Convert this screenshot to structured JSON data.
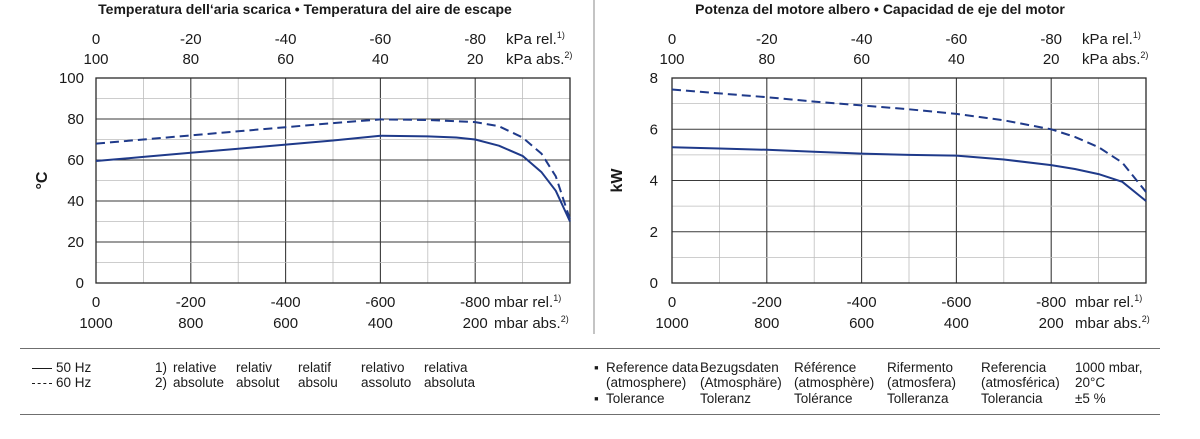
{
  "chart_data": [
    {
      "type": "line",
      "title": "Temperatura dell‘aria scarica  •  Temperatura del aire de escape",
      "ylabel": "°C",
      "ylim": [
        0,
        100
      ],
      "yticks": [
        "0",
        "20",
        "40",
        "60",
        "80",
        "100"
      ],
      "xlim": [
        0,
        -1000
      ],
      "x_bottom": {
        "ticks": [
          {
            "rel": "0",
            "abs": "1000"
          },
          {
            "rel": "-200",
            "abs": "800"
          },
          {
            "rel": "-400",
            "abs": "600"
          },
          {
            "rel": "-600",
            "abs": "400"
          },
          {
            "rel": "-800",
            "abs": "200"
          }
        ],
        "unit_rel": "mbar rel.",
        "unit_abs": "mbar abs.",
        "sup_rel": "1)",
        "sup_abs": "2)"
      },
      "x_top": {
        "ticks": [
          {
            "rel": "0",
            "abs": "100"
          },
          {
            "rel": "-20",
            "abs": "80"
          },
          {
            "rel": "-40",
            "abs": "60"
          },
          {
            "rel": "-60",
            "abs": "40"
          },
          {
            "rel": "-80",
            "abs": "20"
          }
        ],
        "unit_rel": "kPa rel.",
        "unit_abs": "kPa abs.",
        "sup_rel": "1)",
        "sup_abs": "2)"
      },
      "grid": true,
      "series": [
        {
          "name": "50 Hz",
          "style": "solid",
          "color": "#1f3a8a",
          "points": [
            [
              0,
              59.5
            ],
            [
              -100,
              61.5
            ],
            [
              -200,
              63.5
            ],
            [
              -300,
              65.5
            ],
            [
              -400,
              67.5
            ],
            [
              -500,
              69.5
            ],
            [
              -600,
              71.8
            ],
            [
              -700,
              71.5
            ],
            [
              -760,
              71
            ],
            [
              -800,
              70
            ],
            [
              -850,
              67
            ],
            [
              -900,
              62
            ],
            [
              -940,
              54
            ],
            [
              -970,
              45
            ],
            [
              -1000,
              30
            ]
          ]
        },
        {
          "name": "60 Hz",
          "style": "dashed",
          "color": "#1f3a8a",
          "points": [
            [
              0,
              68
            ],
            [
              -100,
              70
            ],
            [
              -200,
              72
            ],
            [
              -300,
              74
            ],
            [
              -400,
              76
            ],
            [
              -500,
              78
            ],
            [
              -600,
              79.8
            ],
            [
              -700,
              79.5
            ],
            [
              -800,
              78.5
            ],
            [
              -850,
              76.5
            ],
            [
              -900,
              71
            ],
            [
              -940,
              63
            ],
            [
              -970,
              52
            ],
            [
              -1000,
              31
            ]
          ]
        }
      ]
    },
    {
      "type": "line",
      "title": "Potenza del motore albero  •  Capacidad de eje del motor",
      "ylabel": "kW",
      "ylim": [
        0,
        8
      ],
      "yticks": [
        "0",
        "2",
        "4",
        "6",
        "8"
      ],
      "xlim": [
        0,
        -1000
      ],
      "x_bottom": {
        "ticks": [
          {
            "rel": "0",
            "abs": "1000"
          },
          {
            "rel": "-200",
            "abs": "800"
          },
          {
            "rel": "-400",
            "abs": "600"
          },
          {
            "rel": "-600",
            "abs": "400"
          },
          {
            "rel": "-800",
            "abs": "200"
          }
        ],
        "unit_rel": "mbar rel.",
        "unit_abs": "mbar abs.",
        "sup_rel": "1)",
        "sup_abs": "2)"
      },
      "x_top": {
        "ticks": [
          {
            "rel": "0",
            "abs": "100"
          },
          {
            "rel": "-20",
            "abs": "80"
          },
          {
            "rel": "-40",
            "abs": "60"
          },
          {
            "rel": "-60",
            "abs": "40"
          },
          {
            "rel": "-80",
            "abs": "20"
          }
        ],
        "unit_rel": "kPa rel.",
        "unit_abs": "kPa abs.",
        "sup_rel": "1)",
        "sup_abs": "2)"
      },
      "grid": true,
      "series": [
        {
          "name": "50 Hz",
          "style": "solid",
          "color": "#1f3a8a",
          "points": [
            [
              0,
              5.3
            ],
            [
              -100,
              5.25
            ],
            [
              -200,
              5.2
            ],
            [
              -300,
              5.12
            ],
            [
              -400,
              5.05
            ],
            [
              -500,
              5.0
            ],
            [
              -600,
              4.97
            ],
            [
              -700,
              4.82
            ],
            [
              -800,
              4.6
            ],
            [
              -850,
              4.45
            ],
            [
              -900,
              4.25
            ],
            [
              -950,
              3.95
            ],
            [
              -1000,
              3.2
            ]
          ]
        },
        {
          "name": "60 Hz",
          "style": "dashed",
          "color": "#1f3a8a",
          "points": [
            [
              0,
              7.55
            ],
            [
              -100,
              7.4
            ],
            [
              -200,
              7.25
            ],
            [
              -300,
              7.08
            ],
            [
              -400,
              6.93
            ],
            [
              -500,
              6.78
            ],
            [
              -600,
              6.6
            ],
            [
              -700,
              6.35
            ],
            [
              -800,
              6.0
            ],
            [
              -850,
              5.7
            ],
            [
              -900,
              5.3
            ],
            [
              -950,
              4.7
            ],
            [
              -1000,
              3.55
            ]
          ]
        }
      ]
    }
  ],
  "legend": {
    "series": [
      {
        "label": "50 Hz",
        "style": "solid"
      },
      {
        "label": "60 Hz",
        "style": "dashed"
      }
    ],
    "footnotes": [
      {
        "key": "1)",
        "words": [
          "relative",
          "relativ",
          "relatif",
          "relativo",
          "relativa"
        ]
      },
      {
        "key": "2)",
        "words": [
          "absolute",
          "absolut",
          "absolu",
          "assoluto",
          "absoluta"
        ]
      }
    ],
    "reference": {
      "bullet": "▪",
      "cols": [
        {
          "l1": "Reference data",
          "l2": "(atmosphere)",
          "l3": "Tolerance"
        },
        {
          "l1": "Bezugsdaten",
          "l2": "(Atmosphäre)",
          "l3": "Toleranz"
        },
        {
          "l1": "Référence",
          "l2": "(atmosphère)",
          "l3": "Tolérance"
        },
        {
          "l1": "Rifermento",
          "l2": "(atmosfera)",
          "l3": "Tolleranza"
        },
        {
          "l1": "Referencia",
          "l2": "(atmosférica)",
          "l3": "Tolerancia"
        }
      ],
      "values": {
        "l1": "1000 mbar,",
        "l2": "20°C",
        "l3": "±5 %"
      }
    }
  }
}
